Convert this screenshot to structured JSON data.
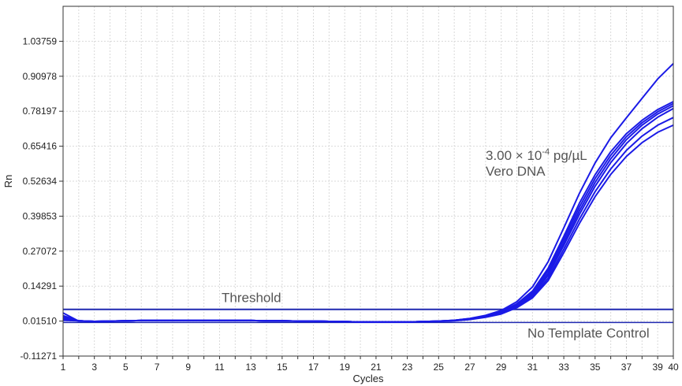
{
  "colors": {
    "curve": "#1a1ae6",
    "threshold": "#1f28b0",
    "grid": "#d9d9d9",
    "axis": "#333333"
  },
  "chart_data": {
    "type": "line",
    "title": "",
    "xlabel": "Cycles",
    "ylabel": "Rn",
    "xlim": [
      1,
      40
    ],
    "ylim": [
      -0.11271,
      1.1654
    ],
    "x_ticks": [
      1,
      3,
      5,
      7,
      9,
      11,
      13,
      15,
      17,
      19,
      21,
      23,
      25,
      27,
      29,
      31,
      33,
      35,
      37,
      39,
      40
    ],
    "y_ticks": [
      -0.11271,
      0.0151,
      0.14291,
      0.27072,
      0.39853,
      0.52634,
      0.65416,
      0.78197,
      0.90978,
      1.03759
    ],
    "y_tick_labels": [
      "-0.11271",
      "0.01510",
      "0.14291",
      "0.27072",
      "0.39853",
      "0.52634",
      "0.65416",
      "0.78197",
      "0.90978",
      "1.03759"
    ],
    "grid": true,
    "threshold": {
      "label": "Threshold",
      "value": 0.058
    },
    "ntc": {
      "label": "No Template Control",
      "value": 0.01
    },
    "annotation": {
      "line1_base": "3.00 × 10",
      "line1_sup": "-4",
      "line1_tail": " pg/µL",
      "line2": "Vero DNA"
    },
    "x": [
      1,
      2,
      3,
      4,
      5,
      6,
      7,
      8,
      9,
      10,
      11,
      12,
      13,
      14,
      15,
      16,
      17,
      18,
      19,
      20,
      21,
      22,
      23,
      24,
      25,
      26,
      27,
      28,
      29,
      30,
      31,
      32,
      33,
      34,
      35,
      36,
      37,
      38,
      39,
      40
    ],
    "series": [
      {
        "values": [
          0.045,
          0.015,
          0.013,
          0.014,
          0.016,
          0.017,
          0.017,
          0.017,
          0.017,
          0.017,
          0.017,
          0.017,
          0.017,
          0.016,
          0.016,
          0.015,
          0.015,
          0.014,
          0.013,
          0.012,
          0.012,
          0.012,
          0.012,
          0.013,
          0.015,
          0.018,
          0.025,
          0.036,
          0.054,
          0.086,
          0.14,
          0.232,
          0.356,
          0.482,
          0.593,
          0.685,
          0.758,
          0.829,
          0.9,
          0.956
        ]
      },
      {
        "values": [
          0.035,
          0.016,
          0.014,
          0.015,
          0.016,
          0.017,
          0.017,
          0.017,
          0.017,
          0.017,
          0.017,
          0.017,
          0.017,
          0.016,
          0.016,
          0.015,
          0.015,
          0.014,
          0.013,
          0.012,
          0.012,
          0.012,
          0.012,
          0.013,
          0.015,
          0.018,
          0.024,
          0.034,
          0.05,
          0.078,
          0.125,
          0.208,
          0.325,
          0.446,
          0.55,
          0.634,
          0.7,
          0.749,
          0.788,
          0.817
        ]
      },
      {
        "values": [
          0.03,
          0.016,
          0.014,
          0.015,
          0.016,
          0.017,
          0.017,
          0.017,
          0.017,
          0.017,
          0.017,
          0.017,
          0.017,
          0.016,
          0.016,
          0.015,
          0.015,
          0.014,
          0.013,
          0.012,
          0.012,
          0.012,
          0.012,
          0.013,
          0.015,
          0.018,
          0.024,
          0.033,
          0.048,
          0.075,
          0.12,
          0.2,
          0.314,
          0.432,
          0.536,
          0.621,
          0.689,
          0.74,
          0.78,
          0.81
        ]
      },
      {
        "values": [
          0.025,
          0.016,
          0.014,
          0.015,
          0.016,
          0.017,
          0.017,
          0.017,
          0.017,
          0.017,
          0.017,
          0.017,
          0.017,
          0.016,
          0.016,
          0.015,
          0.015,
          0.014,
          0.013,
          0.012,
          0.012,
          0.012,
          0.012,
          0.013,
          0.015,
          0.017,
          0.023,
          0.032,
          0.046,
          0.072,
          0.114,
          0.19,
          0.302,
          0.418,
          0.522,
          0.608,
          0.678,
          0.731,
          0.772,
          0.802
        ]
      },
      {
        "values": [
          0.022,
          0.016,
          0.014,
          0.015,
          0.016,
          0.017,
          0.017,
          0.017,
          0.017,
          0.017,
          0.017,
          0.017,
          0.017,
          0.016,
          0.016,
          0.015,
          0.015,
          0.014,
          0.013,
          0.012,
          0.012,
          0.012,
          0.012,
          0.013,
          0.014,
          0.017,
          0.022,
          0.031,
          0.045,
          0.07,
          0.11,
          0.182,
          0.292,
          0.405,
          0.508,
          0.594,
          0.664,
          0.718,
          0.76,
          0.792
        ]
      },
      {
        "values": [
          0.02,
          0.016,
          0.014,
          0.015,
          0.016,
          0.017,
          0.017,
          0.017,
          0.017,
          0.017,
          0.017,
          0.017,
          0.017,
          0.016,
          0.016,
          0.015,
          0.015,
          0.014,
          0.013,
          0.012,
          0.012,
          0.012,
          0.012,
          0.013,
          0.014,
          0.017,
          0.022,
          0.03,
          0.043,
          0.067,
          0.105,
          0.172,
          0.278,
          0.388,
          0.488,
          0.571,
          0.639,
          0.691,
          0.731,
          0.759
        ]
      },
      {
        "values": [
          0.018,
          0.016,
          0.014,
          0.015,
          0.016,
          0.017,
          0.017,
          0.017,
          0.017,
          0.017,
          0.017,
          0.017,
          0.017,
          0.016,
          0.016,
          0.015,
          0.015,
          0.014,
          0.013,
          0.012,
          0.012,
          0.012,
          0.012,
          0.013,
          0.014,
          0.016,
          0.021,
          0.029,
          0.041,
          0.064,
          0.1,
          0.163,
          0.265,
          0.372,
          0.47,
          0.551,
          0.617,
          0.667,
          0.705,
          0.731
        ]
      }
    ]
  }
}
